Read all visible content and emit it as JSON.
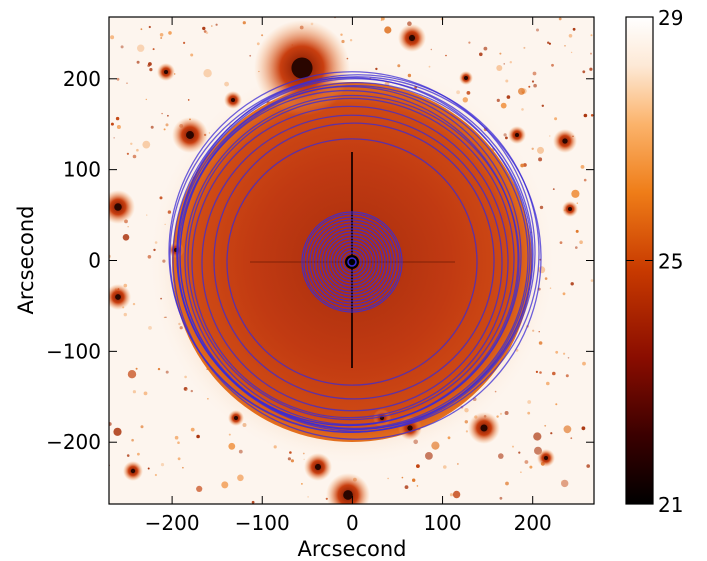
{
  "figure": {
    "x_axis": {
      "label": "Arcsecond",
      "ticks": [
        {
          "value": -200,
          "label": "−200"
        },
        {
          "value": -100,
          "label": "−100"
        },
        {
          "value": 0,
          "label": "0"
        },
        {
          "value": 100,
          "label": "100"
        },
        {
          "value": 200,
          "label": "200"
        }
      ],
      "range": [
        -270,
        268
      ]
    },
    "y_axis": {
      "label": "Arcsecond",
      "ticks": [
        {
          "value": 200,
          "label": "200"
        },
        {
          "value": 100,
          "label": "100"
        },
        {
          "value": 0,
          "label": "0"
        },
        {
          "value": -100,
          "label": "−100"
        },
        {
          "value": -200,
          "label": "−200"
        }
      ],
      "range": [
        -268,
        268
      ]
    },
    "colorbar": {
      "ticks": [
        {
          "value": 29,
          "label": "29"
        },
        {
          "value": 25,
          "label": "25"
        },
        {
          "value": 21,
          "label": "21"
        }
      ],
      "range": [
        21,
        29
      ],
      "colors": [
        "#000000",
        "#3a0000",
        "#8a0d00",
        "#c83a00",
        "#ef7d18",
        "#fbb36b",
        "#fde9d6",
        "#ffffff"
      ]
    },
    "colors": {
      "ellipse_stroke": "#3b2bd6",
      "halo_fill": "#c93a12",
      "background_fill": "#fdf6ef",
      "star_fill": "#c2410c"
    }
  }
}
